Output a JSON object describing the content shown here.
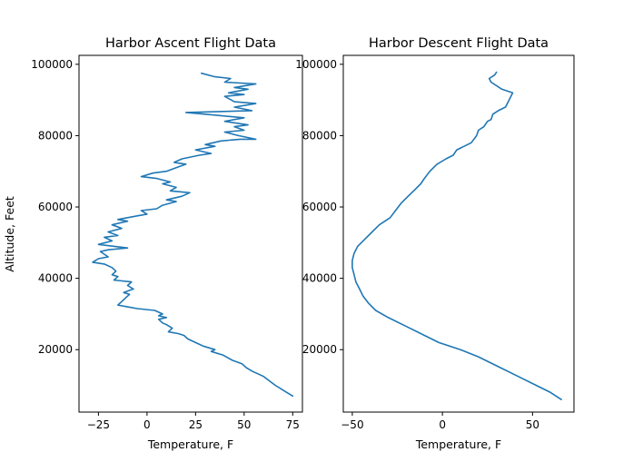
{
  "chart_data": [
    {
      "type": "line",
      "title": "Harbor Ascent Flight Data",
      "xlabel": "Temperature, F",
      "ylabel": "Altitude, Feet",
      "xlim": [
        -35,
        80
      ],
      "ylim": [
        2500,
        102500
      ],
      "xticks": [
        -25,
        0,
        25,
        50,
        75
      ],
      "xtick_labels": [
        "−25",
        "0",
        "25",
        "50",
        "75"
      ],
      "yticks": [
        20000,
        40000,
        60000,
        80000,
        100000
      ],
      "ytick_labels": [
        "20000",
        "40000",
        "60000",
        "80000",
        "100000"
      ],
      "grid": false,
      "series": [
        {
          "color": "#1f77b4",
          "points": [
            [
              75,
              7000
            ],
            [
              72,
              8000
            ],
            [
              66,
              10000
            ],
            [
              60,
              12500
            ],
            [
              54,
              14000
            ],
            [
              51,
              15000
            ],
            [
              49,
              16000
            ],
            [
              44,
              17000
            ],
            [
              39,
              18500
            ],
            [
              33,
              19500
            ],
            [
              35,
              20000
            ],
            [
              29,
              21000
            ],
            [
              25,
              22000
            ],
            [
              21,
              23000
            ],
            [
              19,
              24000
            ],
            [
              16,
              24500
            ],
            [
              11,
              25000
            ],
            [
              13,
              26000
            ],
            [
              10,
              27000
            ],
            [
              8,
              27500
            ],
            [
              6,
              28500
            ],
            [
              10,
              29000
            ],
            [
              6,
              29500
            ],
            [
              8,
              30000
            ],
            [
              4,
              31000
            ],
            [
              -5,
              31500
            ],
            [
              -10,
              32000
            ],
            [
              -15,
              32500
            ],
            [
              -13,
              33500
            ],
            [
              -11,
              34500
            ],
            [
              -9,
              35500
            ],
            [
              -12,
              36000
            ],
            [
              -7,
              37000
            ],
            [
              -10,
              38000
            ],
            [
              -8,
              39000
            ],
            [
              -17,
              39500
            ],
            [
              -15,
              40500
            ],
            [
              -18,
              41000
            ],
            [
              -16,
              42000
            ],
            [
              -18,
              43000
            ],
            [
              -22,
              44000
            ],
            [
              -28,
              44500
            ],
            [
              -25,
              45500
            ],
            [
              -20,
              46000
            ],
            [
              -24,
              47500
            ],
            [
              -20,
              48000
            ],
            [
              -10,
              48500
            ],
            [
              -25,
              49500
            ],
            [
              -18,
              50500
            ],
            [
              -22,
              51500
            ],
            [
              -15,
              52000
            ],
            [
              -20,
              53000
            ],
            [
              -13,
              54000
            ],
            [
              -18,
              55000
            ],
            [
              -10,
              56000
            ],
            [
              -15,
              56500
            ],
            [
              -5,
              57500
            ],
            [
              0,
              58000
            ],
            [
              -3,
              59000
            ],
            [
              5,
              59500
            ],
            [
              8,
              60500
            ],
            [
              15,
              61500
            ],
            [
              10,
              62000
            ],
            [
              18,
              63000
            ],
            [
              22,
              64000
            ],
            [
              12,
              64500
            ],
            [
              15,
              65500
            ],
            [
              8,
              66500
            ],
            [
              12,
              67000
            ],
            [
              5,
              68000
            ],
            [
              -3,
              68500
            ],
            [
              3,
              69500
            ],
            [
              10,
              70000
            ],
            [
              15,
              71000
            ],
            [
              20,
              72000
            ],
            [
              14,
              72500
            ],
            [
              18,
              73500
            ],
            [
              27,
              74500
            ],
            [
              33,
              75000
            ],
            [
              25,
              76000
            ],
            [
              35,
              77000
            ],
            [
              30,
              77500
            ],
            [
              38,
              78500
            ],
            [
              48,
              79000
            ],
            [
              56,
              79000
            ],
            [
              47,
              80000
            ],
            [
              40,
              81000
            ],
            [
              50,
              81500
            ],
            [
              45,
              82500
            ],
            [
              52,
              83000
            ],
            [
              40,
              84000
            ],
            [
              50,
              85000
            ],
            [
              30,
              86000
            ],
            [
              20,
              86500
            ],
            [
              54,
              87000
            ],
            [
              45,
              88000
            ],
            [
              56,
              89000
            ],
            [
              45,
              89500
            ],
            [
              40,
              91000
            ],
            [
              50,
              91500
            ],
            [
              42,
              92000
            ],
            [
              52,
              93000
            ],
            [
              45,
              93500
            ],
            [
              56,
              94500
            ],
            [
              40,
              95000
            ],
            [
              43,
              96000
            ],
            [
              35,
              96500
            ],
            [
              28,
              97500
            ]
          ]
        }
      ]
    },
    {
      "type": "line",
      "title": "Harbor Descent Flight Data",
      "xlabel": "Temperature, F",
      "ylabel": "",
      "xlim": [
        -55,
        73
      ],
      "ylim": [
        2500,
        102500
      ],
      "xticks": [
        -50,
        0,
        50
      ],
      "xtick_labels": [
        "−50",
        "0",
        "50"
      ],
      "yticks": [
        20000,
        40000,
        60000,
        80000,
        100000
      ],
      "ytick_labels": [
        "20000",
        "40000",
        "60000",
        "80000",
        "100000"
      ],
      "grid": false,
      "series": [
        {
          "color": "#1f77b4",
          "points": [
            [
              66,
              6000
            ],
            [
              60,
              8000
            ],
            [
              52,
              10000
            ],
            [
              42,
              12500
            ],
            [
              32,
              15000
            ],
            [
              20,
              18000
            ],
            [
              10,
              20000
            ],
            [
              -2,
              22000
            ],
            [
              -10,
              24000
            ],
            [
              -20,
              26500
            ],
            [
              -30,
              29000
            ],
            [
              -37,
              31000
            ],
            [
              -41,
              33000
            ],
            [
              -44,
              35000
            ],
            [
              -46,
              37000
            ],
            [
              -48,
              39000
            ],
            [
              -49,
              41000
            ],
            [
              -50,
              43000
            ],
            [
              -50,
              45000
            ],
            [
              -49,
              47000
            ],
            [
              -47,
              49000
            ],
            [
              -43,
              51000
            ],
            [
              -39,
              53000
            ],
            [
              -35,
              55000
            ],
            [
              -29,
              57000
            ],
            [
              -26,
              59000
            ],
            [
              -23,
              61000
            ],
            [
              -19,
              63000
            ],
            [
              -15,
              65000
            ],
            [
              -12,
              66500
            ],
            [
              -10,
              68000
            ],
            [
              -7,
              70000
            ],
            [
              -3,
              72000
            ],
            [
              2,
              73500
            ],
            [
              6,
              74500
            ],
            [
              8,
              76000
            ],
            [
              12,
              77000
            ],
            [
              16,
              78000
            ],
            [
              19,
              80000
            ],
            [
              20,
              81500
            ],
            [
              23,
              82500
            ],
            [
              25,
              84000
            ],
            [
              27,
              84500
            ],
            [
              28,
              86000
            ],
            [
              31,
              87000
            ],
            [
              35,
              88000
            ],
            [
              37,
              90000
            ],
            [
              39,
              92000
            ],
            [
              33,
              93000
            ],
            [
              27,
              95000
            ],
            [
              26,
              96000
            ],
            [
              29,
              97000
            ],
            [
              30,
              97800
            ]
          ]
        }
      ]
    }
  ]
}
